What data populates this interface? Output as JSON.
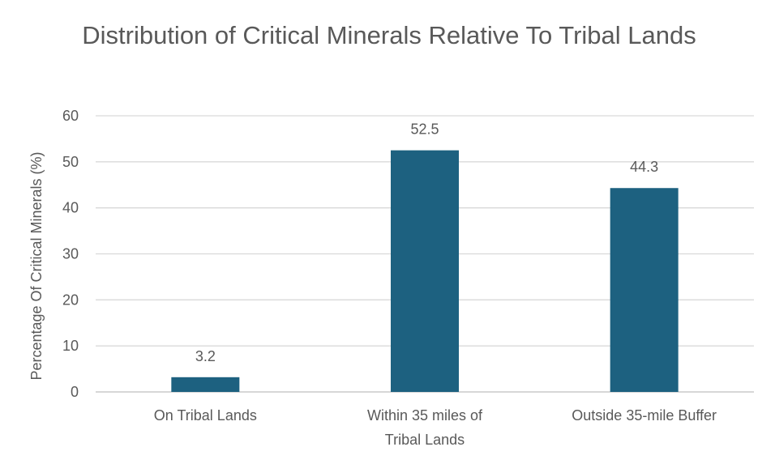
{
  "chart_data": {
    "type": "bar",
    "title": "Distribution of Critical Minerals Relative To Tribal Lands",
    "xlabel": "",
    "ylabel": "Percentage Of Critical Minerals (%)",
    "categories": [
      "On Tribal Lands",
      "Within 35 miles of Tribal Lands",
      "Outside 35-mile Buffer"
    ],
    "values": [
      3.2,
      52.5,
      44.3
    ],
    "data_labels": [
      "3.2",
      "52.5",
      "44.3"
    ],
    "ylim": [
      0,
      60
    ],
    "yticks": [
      0,
      10,
      20,
      30,
      40,
      50,
      60
    ],
    "grid": true,
    "legend": "none",
    "colors": {
      "bar": "#1d6180",
      "grid": "#d9d9d9",
      "text": "#595959"
    }
  }
}
